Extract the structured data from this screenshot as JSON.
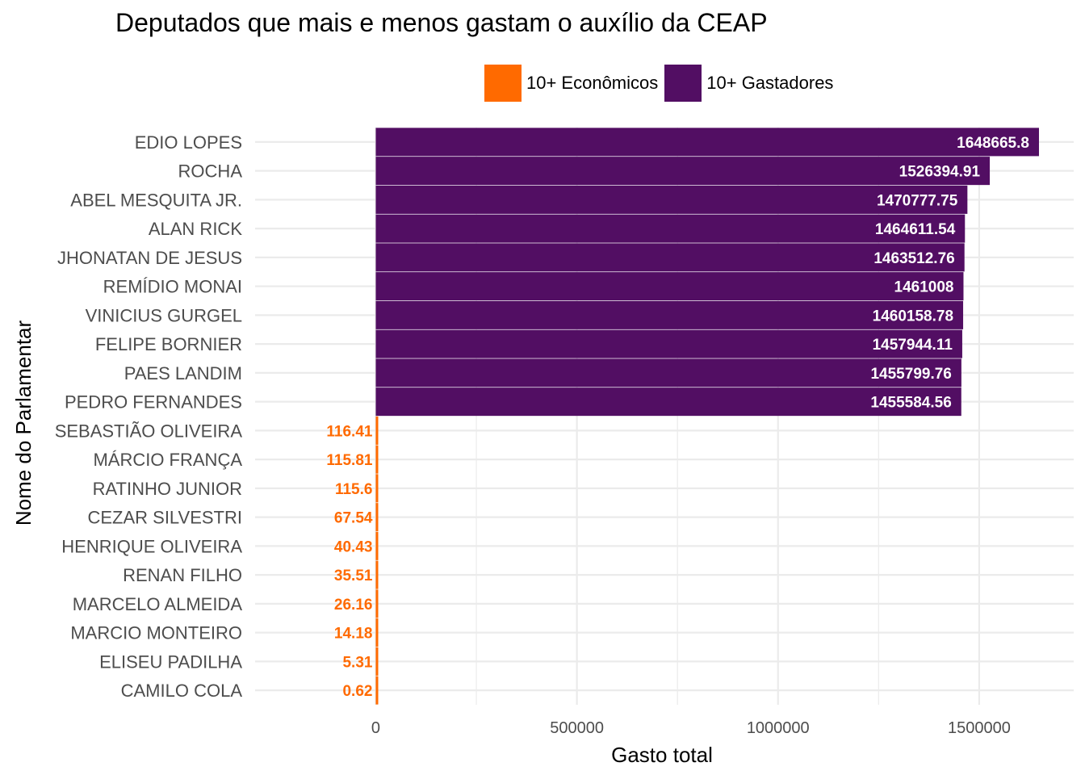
{
  "chart_data": {
    "type": "bar",
    "orientation": "horizontal",
    "title": "Deputados que mais e menos gastam o auxílio da CEAP",
    "xlabel": "Gasto total",
    "ylabel": "Nome do Parlamentar",
    "xlim": [
      -300000,
      1735000
    ],
    "x_ticks": [
      0,
      500000,
      1000000,
      1500000
    ],
    "x_tick_labels": [
      "0",
      "500000",
      "1000000",
      "1500000"
    ],
    "grid": true,
    "legend_position": "top",
    "legend": [
      {
        "name": "10+ Econômicos",
        "color": "#FF6A00"
      },
      {
        "name": "10+ Gastadores",
        "color": "#520E63"
      }
    ],
    "categories": [
      "EDIO LOPES",
      "ROCHA",
      "ABEL MESQUITA JR.",
      "ALAN RICK",
      "JHONATAN DE JESUS",
      "REMÍDIO MONAI",
      "VINICIUS GURGEL",
      "FELIPE BORNIER",
      "PAES LANDIM",
      "PEDRO FERNANDES",
      "SEBASTIÃO OLIVEIRA",
      "MÁRCIO FRANÇA",
      "RATINHO JUNIOR",
      "CEZAR SILVESTRI",
      "HENRIQUE OLIVEIRA",
      "RENAN FILHO",
      "MARCELO ALMEIDA",
      "MARCIO MONTEIRO",
      "ELISEU PADILHA",
      "CAMILO COLA"
    ],
    "values": [
      1648665.8,
      1526394.91,
      1470777.75,
      1464611.54,
      1463512.76,
      1461008,
      1460158.78,
      1457944.11,
      1455799.76,
      1455584.56,
      116.41,
      115.81,
      115.6,
      67.54,
      40.43,
      35.51,
      26.16,
      14.18,
      5.31,
      0.62
    ],
    "value_labels": [
      "1648665.8",
      "1526394.91",
      "1470777.75",
      "1464611.54",
      "1463512.76",
      "1461008",
      "1460158.78",
      "1457944.11",
      "1455799.76",
      "1455584.56",
      "116.41",
      "115.81",
      "115.6",
      "67.54",
      "40.43",
      "35.51",
      "26.16",
      "14.18",
      "5.31",
      "0.62"
    ],
    "groups": [
      "10+ Gastadores",
      "10+ Gastadores",
      "10+ Gastadores",
      "10+ Gastadores",
      "10+ Gastadores",
      "10+ Gastadores",
      "10+ Gastadores",
      "10+ Gastadores",
      "10+ Gastadores",
      "10+ Gastadores",
      "10+ Econômicos",
      "10+ Econômicos",
      "10+ Econômicos",
      "10+ Econômicos",
      "10+ Econômicos",
      "10+ Econômicos",
      "10+ Econômicos",
      "10+ Econômicos",
      "10+ Econômicos",
      "10+ Econômicos"
    ],
    "colors": {
      "econ": "#FF6A00",
      "gast": "#520E63",
      "grid": "#EBEBEB",
      "bar_label_dark": "#FFFFFF",
      "bar_label_light": "#FF6A00"
    }
  }
}
